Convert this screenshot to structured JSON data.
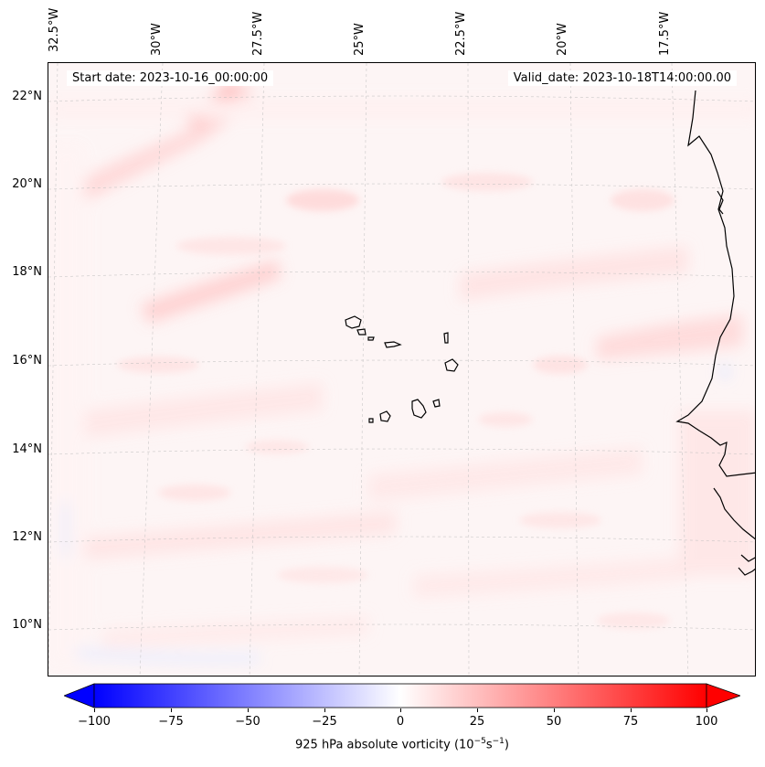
{
  "map": {
    "start_date": "Start date: 2023-10-16_00:00:00",
    "valid_date": "Valid_date: 2023-10-18T14:00:00.00",
    "lon_labels": [
      "32.5°W",
      "30°W",
      "27.5°W",
      "25°W",
      "22.5°W",
      "20°W",
      "17.5°W"
    ],
    "lat_labels": [
      "22°N",
      "20°N",
      "18°N",
      "16°N",
      "14°N",
      "12°N",
      "10°N"
    ],
    "field": "925 hPa absolute vorticity",
    "colors": {
      "neg_max": "#0000ff",
      "pos_max": "#ff0000",
      "mid": "#ffffff",
      "coast": "#000000",
      "grid": "#cccccc"
    }
  },
  "colorbar": {
    "label_prefix": "925 hPa absolute vorticity (10",
    "label_exp1": "−5",
    "label_mid": "s",
    "label_exp2": "−1",
    "label_suffix": ")",
    "min": -100,
    "max": 100,
    "ticks": [
      "−100",
      "−75",
      "−50",
      "−25",
      "0",
      "25",
      "50",
      "75",
      "100"
    ],
    "tick_values": [
      -100,
      -75,
      -50,
      -25,
      0,
      25,
      50,
      75,
      100
    ]
  }
}
